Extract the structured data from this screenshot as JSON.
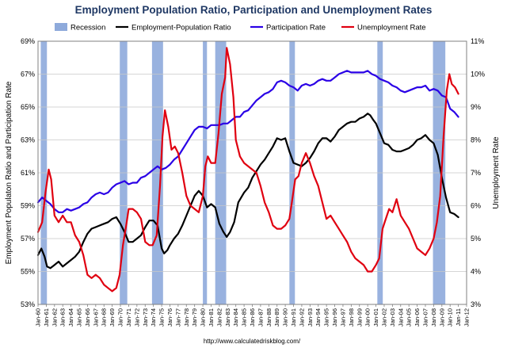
{
  "chart_data": {
    "type": "line",
    "title": "Employment Population Ratio, Participation and Unemployment Rates",
    "ylabel_left": "Employment Populaton Ratio and Participation Rate",
    "ylabel_right": "Unemployment Rate",
    "source": "http://www.calculatedriskblog.com/",
    "ylim_left": [
      53,
      69
    ],
    "ylim_right": [
      3,
      11
    ],
    "yticks_left": [
      "53%",
      "55%",
      "57%",
      "59%",
      "61%",
      "63%",
      "65%",
      "67%",
      "69%"
    ],
    "yticks_right": [
      "3%",
      "4%",
      "5%",
      "6%",
      "7%",
      "8%",
      "9%",
      "10%",
      "11%"
    ],
    "xlim": [
      1960.0,
      2012.0
    ],
    "xticks": [
      "Jan-60",
      "Jan-61",
      "Jan-62",
      "Jan-63",
      "Jan-64",
      "Jan-65",
      "Jan-66",
      "Jan-67",
      "Jan-68",
      "Jan-69",
      "Jan-70",
      "Jan-71",
      "Jan-72",
      "Jan-73",
      "Jan-74",
      "Jan-75",
      "Jan-76",
      "Jan-77",
      "Jan-78",
      "Jan-79",
      "Jan-80",
      "Jan-81",
      "Jan-82",
      "Jan-83",
      "Jan-84",
      "Jan-85",
      "Jan-86",
      "Jan-87",
      "Jan-88",
      "Jan-89",
      "Jan-90",
      "Jan-91",
      "Jan-92",
      "Jan-93",
      "Jan-94",
      "Jan-95",
      "Jan-96",
      "Jan-97",
      "Jan-98",
      "Jan-99",
      "Jan-00",
      "Jan-01",
      "Jan-02",
      "Jan-03",
      "Jan-04",
      "Jan-05",
      "Jan-06",
      "Jan-07",
      "Jan-08",
      "Jan-09",
      "Jan-10",
      "Jan-11",
      "Jan-12"
    ],
    "legend": [
      {
        "name": "Recession",
        "color": "#8eaadb",
        "kind": "box"
      },
      {
        "name": "Employment-Population Ratio",
        "color": "#000000",
        "kind": "line"
      },
      {
        "name": "Participation Rate",
        "color": "#2a00e6",
        "kind": "line"
      },
      {
        "name": "Unemployment Rate",
        "color": "#e00010",
        "kind": "line"
      }
    ],
    "recessions": [
      [
        1960.33,
        1961.08
      ],
      [
        1969.92,
        1970.83
      ],
      [
        1973.83,
        1975.17
      ],
      [
        1980.0,
        1980.5
      ],
      [
        1981.5,
        1982.83
      ],
      [
        1990.5,
        1991.17
      ],
      [
        2001.17,
        2001.83
      ],
      [
        2007.92,
        2009.42
      ]
    ],
    "series": [
      {
        "name": "Employment-Population Ratio",
        "axis": "left",
        "color": "#000000",
        "x": [
          1960.0,
          1960.4,
          1960.8,
          1961.1,
          1961.5,
          1962.0,
          1962.5,
          1963.0,
          1963.5,
          1964.0,
          1964.5,
          1965.0,
          1965.5,
          1966.0,
          1966.5,
          1967.0,
          1967.5,
          1968.0,
          1968.5,
          1969.0,
          1969.5,
          1970.0,
          1970.5,
          1971.0,
          1971.5,
          1972.0,
          1972.5,
          1973.0,
          1973.5,
          1974.0,
          1974.5,
          1975.0,
          1975.3,
          1975.7,
          1976.0,
          1976.5,
          1977.0,
          1977.5,
          1978.0,
          1978.5,
          1979.0,
          1979.5,
          1980.0,
          1980.5,
          1981.0,
          1981.5,
          1982.0,
          1982.5,
          1982.9,
          1983.3,
          1983.8,
          1984.3,
          1985.0,
          1985.5,
          1986.0,
          1986.5,
          1987.0,
          1987.5,
          1988.0,
          1988.5,
          1989.0,
          1989.5,
          1990.0,
          1990.5,
          1991.0,
          1991.5,
          1992.0,
          1992.5,
          1993.0,
          1993.5,
          1994.0,
          1994.5,
          1995.0,
          1995.5,
          1996.0,
          1996.5,
          1997.0,
          1997.5,
          1998.0,
          1998.5,
          1999.0,
          1999.5,
          2000.0,
          2000.3,
          2000.7,
          2001.0,
          2001.5,
          2002.0,
          2002.5,
          2003.0,
          2003.5,
          2004.0,
          2004.5,
          2005.0,
          2005.5,
          2006.0,
          2006.5,
          2007.0,
          2007.5,
          2008.0,
          2008.5,
          2009.0,
          2009.5,
          2010.0,
          2010.5,
          2011.0
        ],
        "values": [
          56.0,
          56.4,
          55.9,
          55.3,
          55.2,
          55.4,
          55.6,
          55.3,
          55.5,
          55.7,
          55.9,
          56.2,
          56.8,
          57.3,
          57.6,
          57.7,
          57.8,
          57.9,
          58.0,
          58.2,
          58.3,
          57.9,
          57.4,
          56.8,
          56.8,
          57.0,
          57.2,
          57.7,
          58.1,
          58.1,
          57.8,
          56.4,
          56.1,
          56.3,
          56.6,
          57.0,
          57.3,
          57.8,
          58.4,
          59.0,
          59.6,
          59.9,
          59.6,
          58.9,
          59.1,
          58.9,
          57.9,
          57.4,
          57.1,
          57.4,
          58.0,
          59.2,
          59.8,
          60.1,
          60.7,
          61.1,
          61.5,
          61.8,
          62.2,
          62.6,
          63.1,
          63.0,
          63.1,
          62.3,
          61.6,
          61.5,
          61.4,
          61.6,
          61.9,
          62.3,
          62.8,
          63.1,
          63.1,
          62.9,
          63.2,
          63.6,
          63.8,
          64.0,
          64.1,
          64.1,
          64.3,
          64.4,
          64.6,
          64.5,
          64.2,
          64.0,
          63.4,
          62.8,
          62.7,
          62.4,
          62.3,
          62.3,
          62.4,
          62.5,
          62.7,
          63.0,
          63.1,
          63.3,
          63.0,
          62.8,
          62.1,
          60.7,
          59.5,
          58.6,
          58.5,
          58.3
        ]
      },
      {
        "name": "Participation Rate",
        "axis": "left",
        "color": "#2a00e6",
        "x": [
          1960.0,
          1960.5,
          1961.0,
          1961.5,
          1962.0,
          1962.5,
          1963.0,
          1963.5,
          1964.0,
          1964.5,
          1965.0,
          1965.5,
          1966.0,
          1966.5,
          1967.0,
          1967.5,
          1968.0,
          1968.5,
          1969.0,
          1969.5,
          1970.0,
          1970.5,
          1971.0,
          1971.5,
          1972.0,
          1972.5,
          1973.0,
          1973.5,
          1974.0,
          1974.5,
          1975.0,
          1975.5,
          1976.0,
          1976.5,
          1977.0,
          1977.5,
          1978.0,
          1978.5,
          1979.0,
          1979.5,
          1980.0,
          1980.5,
          1981.0,
          1981.5,
          1982.0,
          1982.5,
          1983.0,
          1983.5,
          1984.0,
          1984.5,
          1985.0,
          1985.5,
          1986.0,
          1986.5,
          1987.0,
          1987.5,
          1988.0,
          1988.5,
          1989.0,
          1989.5,
          1990.0,
          1990.5,
          1991.0,
          1991.5,
          1992.0,
          1992.5,
          1993.0,
          1993.5,
          1994.0,
          1994.5,
          1995.0,
          1995.5,
          1996.0,
          1996.5,
          1997.0,
          1997.5,
          1998.0,
          1998.5,
          1999.0,
          1999.5,
          2000.0,
          2000.5,
          2001.0,
          2001.5,
          2002.0,
          2002.5,
          2003.0,
          2003.5,
          2004.0,
          2004.5,
          2005.0,
          2005.5,
          2006.0,
          2006.5,
          2007.0,
          2007.5,
          2008.0,
          2008.5,
          2009.0,
          2009.5,
          2010.0,
          2010.5,
          2011.0
        ],
        "values": [
          59.2,
          59.5,
          59.3,
          59.1,
          58.8,
          58.6,
          58.6,
          58.8,
          58.7,
          58.8,
          58.9,
          59.1,
          59.2,
          59.5,
          59.7,
          59.8,
          59.7,
          59.8,
          60.1,
          60.3,
          60.4,
          60.5,
          60.3,
          60.4,
          60.4,
          60.7,
          60.8,
          61.0,
          61.2,
          61.4,
          61.2,
          61.3,
          61.5,
          61.8,
          62.0,
          62.4,
          62.8,
          63.2,
          63.6,
          63.8,
          63.8,
          63.7,
          63.9,
          63.9,
          63.9,
          64.0,
          64.0,
          64.2,
          64.4,
          64.4,
          64.7,
          64.8,
          65.1,
          65.4,
          65.6,
          65.8,
          65.9,
          66.1,
          66.5,
          66.6,
          66.5,
          66.3,
          66.2,
          66.0,
          66.3,
          66.4,
          66.3,
          66.4,
          66.6,
          66.7,
          66.6,
          66.6,
          66.8,
          67.0,
          67.1,
          67.2,
          67.1,
          67.1,
          67.1,
          67.1,
          67.2,
          67.0,
          66.9,
          66.7,
          66.6,
          66.5,
          66.3,
          66.2,
          66.0,
          65.9,
          66.0,
          66.1,
          66.2,
          66.2,
          66.3,
          66.0,
          66.1,
          66.0,
          65.7,
          65.6,
          64.9,
          64.7,
          64.4
        ]
      },
      {
        "name": "Unemployment Rate",
        "axis": "right",
        "color": "#e00010",
        "x": [
          1960.0,
          1960.5,
          1960.9,
          1961.3,
          1961.6,
          1962.0,
          1962.5,
          1963.0,
          1963.5,
          1964.0,
          1964.5,
          1965.0,
          1965.5,
          1966.0,
          1966.5,
          1967.0,
          1967.5,
          1968.0,
          1968.5,
          1969.0,
          1969.5,
          1969.9,
          1970.3,
          1970.7,
          1971.0,
          1971.5,
          1972.0,
          1972.5,
          1973.0,
          1973.5,
          1973.9,
          1974.4,
          1974.8,
          1975.1,
          1975.4,
          1975.8,
          1976.2,
          1976.6,
          1977.0,
          1977.5,
          1978.0,
          1978.5,
          1979.0,
          1979.5,
          1980.0,
          1980.3,
          1980.6,
          1981.0,
          1981.5,
          1981.9,
          1982.3,
          1982.7,
          1982.9,
          1983.3,
          1983.7,
          1984.0,
          1984.5,
          1985.0,
          1985.5,
          1986.0,
          1986.5,
          1987.0,
          1987.5,
          1988.0,
          1988.5,
          1989.0,
          1989.5,
          1990.0,
          1990.5,
          1990.8,
          1991.2,
          1991.6,
          1992.0,
          1992.5,
          1993.0,
          1993.5,
          1994.0,
          1994.5,
          1995.0,
          1995.5,
          1996.0,
          1996.5,
          1997.0,
          1997.5,
          1998.0,
          1998.5,
          1999.0,
          1999.5,
          2000.0,
          2000.5,
          2001.0,
          2001.4,
          2001.8,
          2002.2,
          2002.6,
          2003.0,
          2003.5,
          2004.0,
          2004.5,
          2005.0,
          2005.5,
          2006.0,
          2006.5,
          2007.0,
          2007.5,
          2008.0,
          2008.4,
          2008.8,
          2009.2,
          2009.6,
          2009.9,
          2010.2,
          2010.6,
          2011.0
        ],
        "values": [
          5.2,
          5.5,
          6.4,
          7.1,
          6.8,
          5.7,
          5.5,
          5.7,
          5.5,
          5.5,
          5.1,
          4.9,
          4.5,
          3.9,
          3.8,
          3.9,
          3.8,
          3.6,
          3.5,
          3.4,
          3.5,
          3.9,
          4.8,
          5.4,
          5.9,
          5.9,
          5.8,
          5.6,
          4.9,
          4.8,
          4.8,
          5.1,
          6.6,
          8.1,
          8.9,
          8.4,
          7.7,
          7.8,
          7.6,
          7.0,
          6.3,
          6.0,
          5.9,
          5.8,
          6.3,
          7.2,
          7.5,
          7.3,
          7.3,
          8.2,
          9.4,
          9.9,
          10.8,
          10.3,
          9.3,
          8.0,
          7.5,
          7.3,
          7.2,
          7.1,
          7.0,
          6.6,
          6.1,
          5.8,
          5.4,
          5.3,
          5.3,
          5.4,
          5.6,
          6.1,
          6.8,
          6.9,
          7.3,
          7.6,
          7.3,
          6.9,
          6.6,
          6.1,
          5.6,
          5.7,
          5.5,
          5.3,
          5.1,
          4.9,
          4.6,
          4.4,
          4.3,
          4.2,
          4.0,
          4.0,
          4.2,
          4.4,
          5.3,
          5.6,
          5.9,
          5.8,
          6.2,
          5.7,
          5.5,
          5.3,
          5.0,
          4.7,
          4.6,
          4.5,
          4.7,
          5.0,
          5.5,
          6.3,
          8.1,
          9.5,
          10.0,
          9.7,
          9.6,
          9.4
        ]
      }
    ]
  }
}
